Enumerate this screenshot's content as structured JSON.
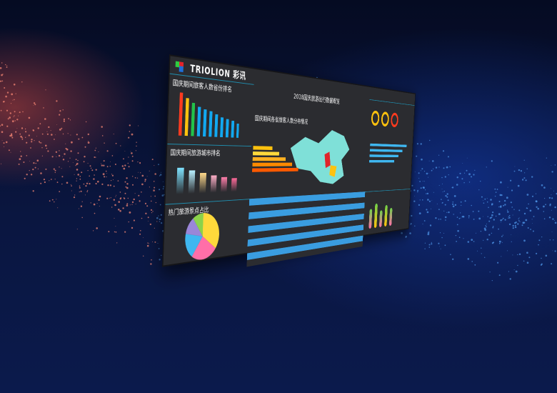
{
  "brand": {
    "logo_text": "TRIOLION 彩讯"
  },
  "panels": {
    "top_left_title": "国庆期间旅客人数省份排名",
    "mid_left_title": "国庆期间旅游城市排名",
    "bottom_left_title": "热门旅游景点占比",
    "center_title": "2018国庆旅游出行数据概览",
    "center_sub": "国庆期间各省旅客人数分布情况"
  },
  "bar_values": [
    100,
    88,
    78,
    70,
    66,
    62,
    55,
    50,
    46,
    42,
    36
  ],
  "bar_colors": [
    "#ff3b1f",
    "#ffc20e",
    "#22c34a",
    "#12a8f0",
    "#12a8f0",
    "#12a8f0",
    "#12a8f0",
    "#12a8f0",
    "#12a8f0",
    "#12a8f0",
    "#12a8f0"
  ],
  "tube_values": [
    80,
    72,
    64,
    56,
    50,
    44
  ],
  "tube_colors": [
    "#7fe3ff",
    "#b9f0ff",
    "#ffd98a",
    "#ffb0c8",
    "#ff7eaa",
    "#ff6a9a"
  ],
  "pie": [
    {
      "v": 35,
      "c": "#ffd93b"
    },
    {
      "v": 25,
      "c": "#ff6fa8"
    },
    {
      "v": 18,
      "c": "#3fb7f0"
    },
    {
      "v": 12,
      "c": "#9a86d8"
    },
    {
      "v": 10,
      "c": "#8bd24a"
    }
  ],
  "accent": "#3a9de0"
}
